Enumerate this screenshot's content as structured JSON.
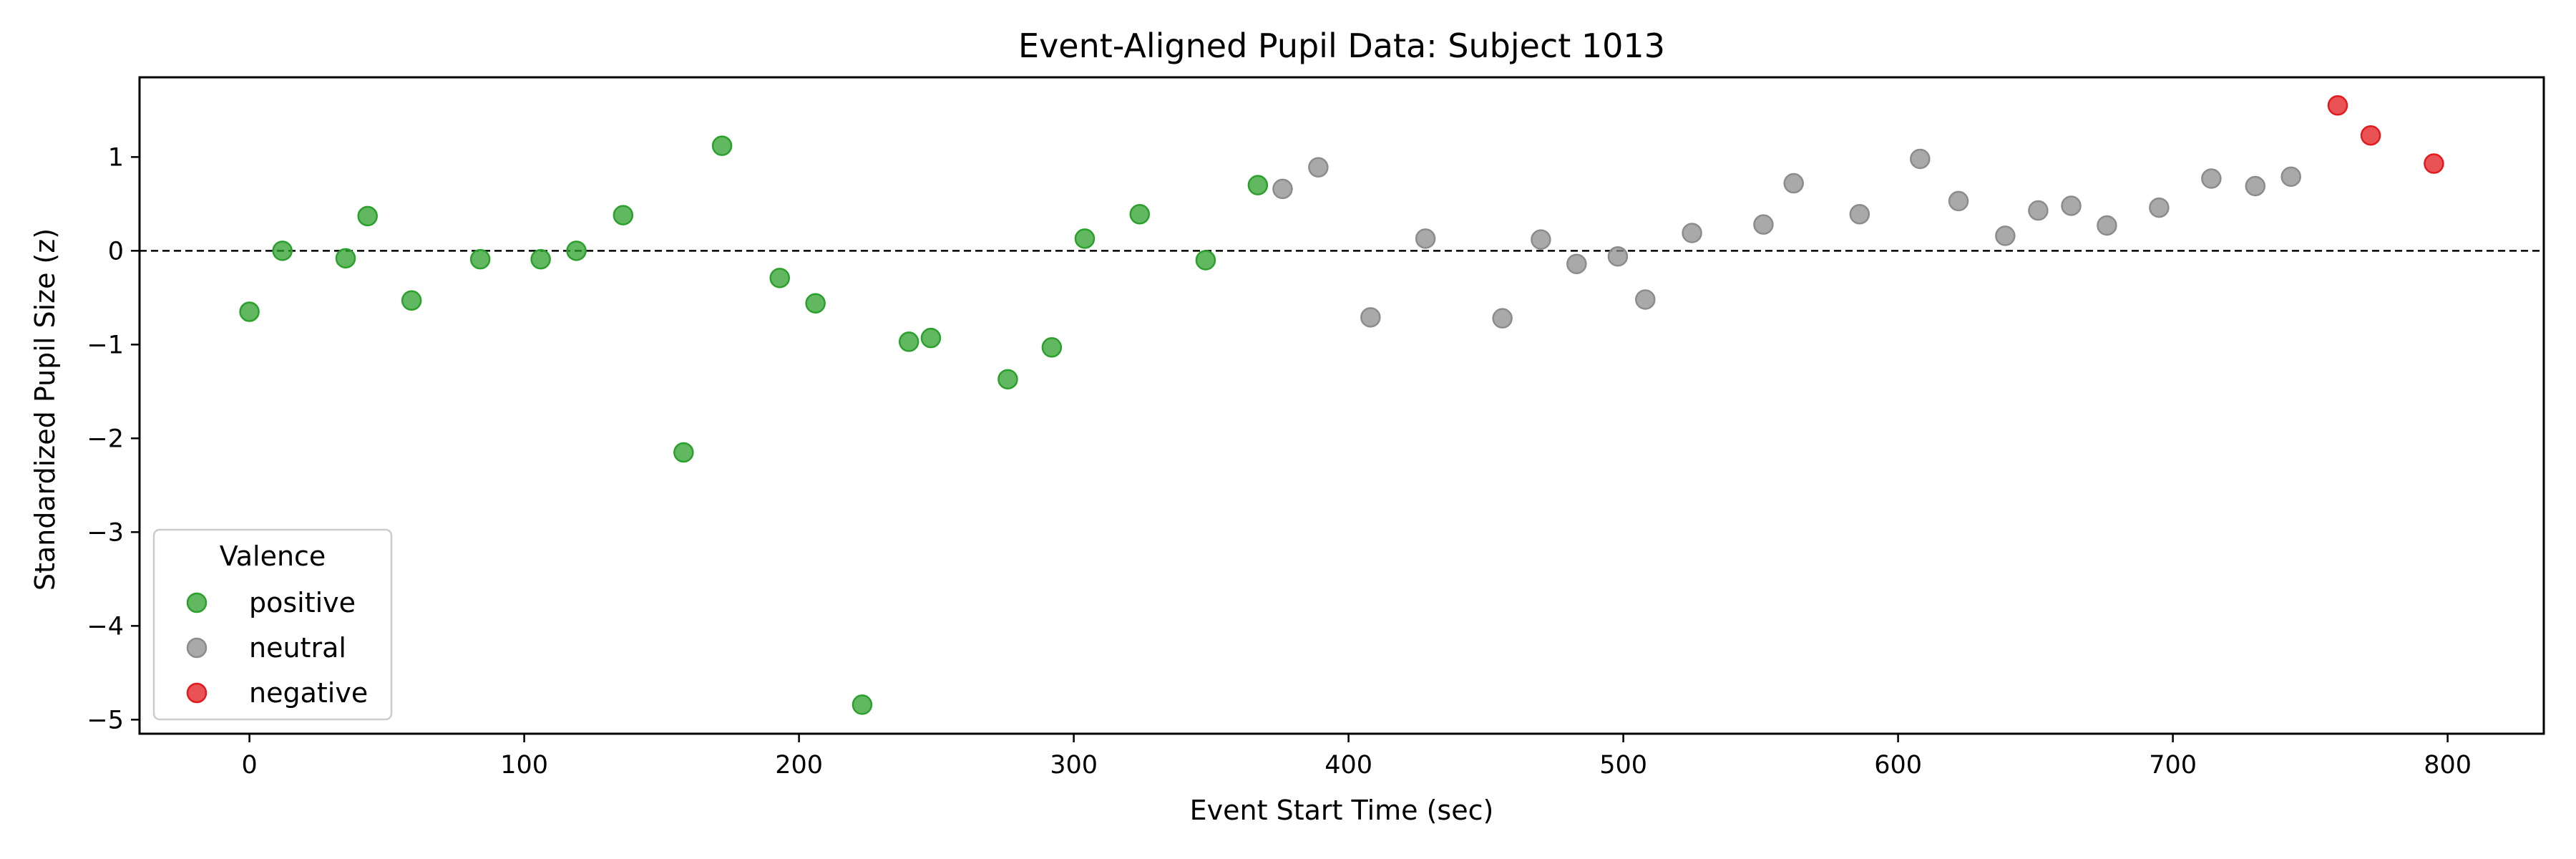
{
  "chart_data": {
    "type": "scatter",
    "title": "Event-Aligned Pupil Data: Subject 1013",
    "xlabel": "Event Start Time (sec)",
    "ylabel": "Standardized Pupil Size (z)",
    "xlim": [
      -40,
      835
    ],
    "ylim": [
      -5.15,
      1.85
    ],
    "xticks": [
      0,
      100,
      200,
      300,
      400,
      500,
      600,
      700,
      800
    ],
    "yticks": [
      1,
      0,
      -1,
      -2,
      -3,
      -4,
      -5
    ],
    "ytick_labels": [
      "1",
      "0",
      "−1",
      "−2",
      "−3",
      "−4",
      "−5"
    ],
    "reference_line": {
      "y": 0,
      "style": "dashed"
    },
    "grid": false,
    "legend": {
      "title": "Valence",
      "location": "lower-left"
    },
    "series": [
      {
        "name": "positive",
        "color": "#2ca02c",
        "points": [
          [
            0,
            -0.65
          ],
          [
            12,
            0.0
          ],
          [
            35,
            -0.08
          ],
          [
            43,
            0.37
          ],
          [
            59,
            -0.53
          ],
          [
            84,
            -0.09
          ],
          [
            106,
            -0.09
          ],
          [
            119,
            0.0
          ],
          [
            136,
            0.38
          ],
          [
            158,
            -2.15
          ],
          [
            172,
            1.12
          ],
          [
            193,
            -0.29
          ],
          [
            206,
            -0.56
          ],
          [
            223,
            -4.84
          ],
          [
            240,
            -0.97
          ],
          [
            248,
            -0.93
          ],
          [
            276,
            -1.37
          ],
          [
            292,
            -1.03
          ],
          [
            304,
            0.13
          ],
          [
            324,
            0.39
          ],
          [
            348,
            -0.1
          ],
          [
            367,
            0.7
          ]
        ]
      },
      {
        "name": "neutral",
        "color": "#8c8c8c",
        "points": [
          [
            376,
            0.66
          ],
          [
            389,
            0.89
          ],
          [
            408,
            -0.71
          ],
          [
            428,
            0.13
          ],
          [
            456,
            -0.72
          ],
          [
            470,
            0.12
          ],
          [
            483,
            -0.14
          ],
          [
            498,
            -0.06
          ],
          [
            508,
            -0.52
          ],
          [
            525,
            0.19
          ],
          [
            551,
            0.28
          ],
          [
            562,
            0.72
          ],
          [
            586,
            0.39
          ],
          [
            608,
            0.98
          ],
          [
            622,
            0.53
          ],
          [
            639,
            0.16
          ],
          [
            651,
            0.43
          ],
          [
            663,
            0.48
          ],
          [
            676,
            0.27
          ],
          [
            695,
            0.46
          ],
          [
            714,
            0.77
          ],
          [
            730,
            0.69
          ],
          [
            743,
            0.79
          ]
        ]
      },
      {
        "name": "negative",
        "color": "#e31a1c",
        "points": [
          [
            760,
            1.55
          ],
          [
            772,
            1.23
          ],
          [
            795,
            0.93
          ]
        ]
      }
    ]
  }
}
